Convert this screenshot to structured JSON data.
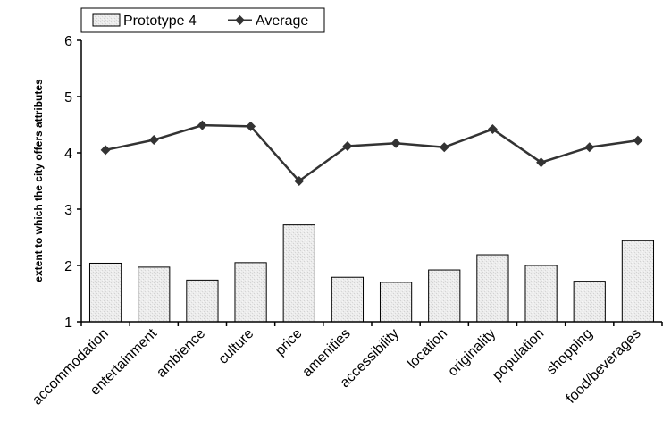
{
  "chart_data": {
    "type": "bar",
    "ylabel": "extent to which the city offers attributes",
    "xlabel": "",
    "ylim": [
      1,
      6
    ],
    "yticks": [
      1,
      2,
      3,
      4,
      5,
      6
    ],
    "grid": false,
    "legend_position": "top-left",
    "categories": [
      "accommodation",
      "entertainment",
      "ambience",
      "culture",
      "price",
      "amenities",
      "accessibility",
      "location",
      "originality",
      "population",
      "shopping",
      "food/beverages"
    ],
    "series": [
      {
        "name": "Prototype 4",
        "type": "bar",
        "color": "#ebebeb",
        "values": [
          2.04,
          1.97,
          1.74,
          2.05,
          2.72,
          1.79,
          1.7,
          1.92,
          2.19,
          2.0,
          1.72,
          2.44
        ]
      },
      {
        "name": "Average",
        "type": "line",
        "marker": "diamond",
        "color": "#333333",
        "values": [
          4.05,
          4.23,
          4.49,
          4.47,
          3.5,
          4.12,
          4.17,
          4.1,
          4.42,
          3.83,
          4.1,
          4.22
        ]
      }
    ]
  }
}
